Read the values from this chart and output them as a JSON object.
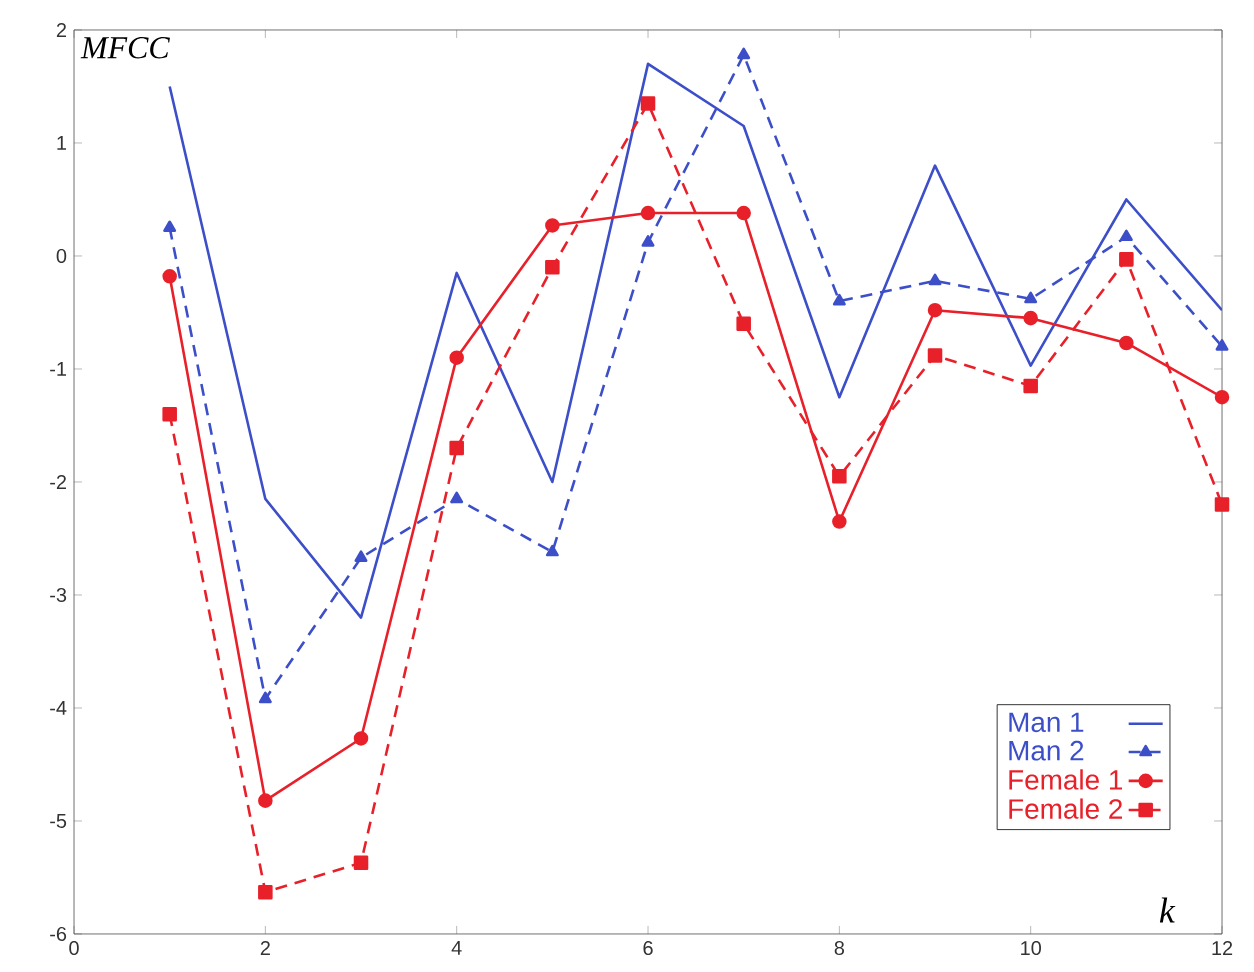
{
  "chart_data": {
    "type": "line",
    "xlabel": "k",
    "ylabel": "MFCC",
    "x": [
      1,
      2,
      3,
      4,
      5,
      6,
      7,
      8,
      9,
      10,
      11,
      12
    ],
    "xlim": [
      0,
      12
    ],
    "xticks": [
      0,
      2,
      4,
      6,
      8,
      10,
      12
    ],
    "ylim": [
      -6,
      2
    ],
    "yticks": [
      -6,
      -5,
      -4,
      -3,
      -2,
      -1,
      0,
      1,
      2
    ],
    "grid": false,
    "legend": "bottom right",
    "series": [
      {
        "name": "Man 1",
        "color": "#3c4fc8",
        "marker": "none",
        "line_style": "solid",
        "values": [
          1.5,
          -2.15,
          -3.2,
          -0.15,
          -2.0,
          1.7,
          1.15,
          -1.25,
          0.8,
          -0.97,
          0.5,
          -0.48
        ]
      },
      {
        "name": "Man 2",
        "color": "#3c4fc8",
        "marker": "triangle",
        "line_style": "dashed",
        "values": [
          0.25,
          -3.92,
          -2.67,
          -2.15,
          -2.62,
          0.12,
          1.78,
          -0.4,
          -0.22,
          -0.38,
          0.17,
          -0.8
        ]
      },
      {
        "name": "Female 1",
        "color": "#e8202a",
        "marker": "circle",
        "line_style": "solid",
        "values": [
          -0.18,
          -4.82,
          -4.27,
          -0.9,
          0.27,
          0.38,
          0.38,
          -2.35,
          -0.48,
          -0.55,
          -0.77,
          -1.25
        ]
      },
      {
        "name": "Female 2",
        "color": "#e8202a",
        "marker": "square",
        "line_style": "dashed",
        "values": [
          -1.4,
          -5.63,
          -5.37,
          -1.7,
          -0.1,
          1.35,
          -0.6,
          -1.95,
          -0.88,
          -1.15,
          -0.03,
          -2.2
        ]
      }
    ]
  }
}
